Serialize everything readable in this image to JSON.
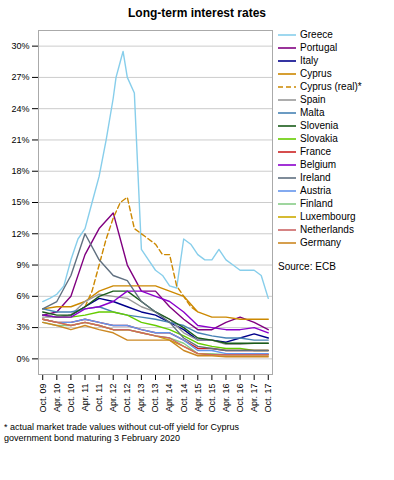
{
  "chart_data": {
    "type": "line",
    "title": "Long-term interest rates",
    "xlim": [
      -0.3,
      16.3
    ],
    "xticks": [
      {
        "value": 0,
        "label": "Oct. 09"
      },
      {
        "value": 1,
        "label": "Apr. 10"
      },
      {
        "value": 2,
        "label": "Oct. 10"
      },
      {
        "value": 3,
        "label": "Apr. 11"
      },
      {
        "value": 4,
        "label": "Oct. 11"
      },
      {
        "value": 5,
        "label": "Apr. 12"
      },
      {
        "value": 6,
        "label": "Oct. 12"
      },
      {
        "value": 7,
        "label": "Apr. 13"
      },
      {
        "value": 8,
        "label": "Oct. 13"
      },
      {
        "value": 9,
        "label": "Apr. 14"
      },
      {
        "value": 10,
        "label": "Oct. 14"
      },
      {
        "value": 11,
        "label": "Apr. 15"
      },
      {
        "value": 12,
        "label": "Oct. 15"
      },
      {
        "value": 13,
        "label": "Apr. 16"
      },
      {
        "value": 14,
        "label": "Oct. 16"
      },
      {
        "value": 15,
        "label": "Apr. 17"
      },
      {
        "value": 16,
        "label": "Oct. 17"
      }
    ],
    "ylim": [
      -1.5,
      31.5
    ],
    "yticks": [
      {
        "value": 0,
        "label": "0%"
      },
      {
        "value": 3,
        "label": "3%"
      },
      {
        "value": 6,
        "label": "6%"
      },
      {
        "value": 9,
        "label": "9%"
      },
      {
        "value": 12,
        "label": "12%"
      },
      {
        "value": 15,
        "label": "15%"
      },
      {
        "value": 18,
        "label": "18%"
      },
      {
        "value": 21,
        "label": "21%"
      },
      {
        "value": 24,
        "label": "24%"
      },
      {
        "value": 27,
        "label": "27%"
      },
      {
        "value": 30,
        "label": "30%"
      }
    ],
    "grid": true,
    "legend": "right",
    "annotations": [
      "Source: ECB",
      "* actual market trade values without cut-off yield for Cyprus\ngovernment bond maturing 3 February 2020"
    ],
    "series": [
      {
        "name": "Greece",
        "color": "#87CEEB",
        "line_style": "solid",
        "x": [
          0,
          0.5,
          1,
          1.5,
          2,
          2.5,
          3,
          3.5,
          4,
          4.5,
          5,
          5.2,
          5.5,
          5.7,
          6,
          6.5,
          7,
          7.5,
          8,
          8.5,
          9,
          9.5,
          10,
          10.5,
          11,
          11.5,
          12,
          12.5,
          13,
          13.5,
          14,
          14.5,
          15,
          15.5,
          16
        ],
        "values": [
          5.5,
          5.8,
          6.2,
          7.0,
          9.5,
          11.5,
          12.5,
          15.0,
          17.5,
          21.0,
          25.0,
          27.0,
          28.5,
          29.5,
          27.0,
          25.5,
          10.5,
          9.5,
          8.5,
          8.0,
          7.0,
          6.8,
          11.5,
          11.0,
          10.0,
          9.5,
          9.5,
          10.5,
          9.5,
          9.0,
          8.5,
          8.5,
          8.5,
          8.0,
          5.8
        ]
      },
      {
        "name": "Portugal",
        "color": "#800080",
        "line_style": "solid",
        "x": [
          0,
          1,
          2,
          3,
          4,
          5,
          6,
          7,
          8,
          9,
          10,
          11,
          12,
          13,
          14,
          15,
          16
        ],
        "values": [
          4.2,
          4.5,
          6.0,
          10.0,
          12.5,
          14.0,
          9.0,
          6.5,
          6.5,
          5.0,
          3.8,
          2.8,
          2.8,
          3.5,
          4.0,
          3.5,
          2.8
        ]
      },
      {
        "name": "Italy",
        "color": "#00008B",
        "line_style": "solid",
        "x": [
          0,
          1,
          2,
          3,
          4,
          5,
          6,
          7,
          8,
          9,
          10,
          11,
          12,
          13,
          14,
          15,
          16
        ],
        "values": [
          4.2,
          4.0,
          4.2,
          5.0,
          5.8,
          5.5,
          5.0,
          4.5,
          4.2,
          3.5,
          2.8,
          1.8,
          1.8,
          1.6,
          2.0,
          2.4,
          2.0
        ]
      },
      {
        "name": "Cyprus",
        "color": "#CC8800",
        "line_style": "solid",
        "x": [
          0,
          1,
          2,
          3,
          4,
          5,
          6,
          7,
          8,
          9,
          10,
          11,
          12,
          13,
          14,
          15,
          16
        ],
        "values": [
          4.8,
          5.0,
          5.0,
          5.5,
          6.5,
          7.0,
          7.0,
          7.0,
          7.0,
          6.5,
          6.0,
          4.5,
          4.0,
          4.0,
          3.8,
          3.8,
          3.8
        ]
      },
      {
        "name": "Cyprus (real)*",
        "color": "#CC8800",
        "line_style": "dashed",
        "x": [
          3,
          3.5,
          4,
          4.5,
          5,
          5.5,
          6,
          6.5,
          7,
          7.5,
          8,
          8.5,
          9,
          9.5,
          10,
          10.5,
          11
        ],
        "values": [
          5.0,
          6.5,
          9.0,
          11.5,
          13.5,
          15.0,
          15.5,
          12.5,
          12.0,
          11.5,
          11.0,
          10.0,
          10.0,
          7.0,
          6.0,
          5.0,
          4.5
        ]
      },
      {
        "name": "Spain",
        "color": "#999999",
        "line_style": "solid",
        "x": [
          0,
          1,
          2,
          3,
          4,
          5,
          6,
          7,
          8,
          9,
          10,
          11,
          12,
          13,
          14,
          15,
          16
        ],
        "values": [
          4.0,
          4.0,
          4.2,
          5.5,
          6.2,
          6.0,
          5.8,
          5.0,
          4.5,
          3.8,
          2.5,
          1.8,
          1.8,
          1.4,
          1.4,
          1.5,
          1.5
        ]
      },
      {
        "name": "Malta",
        "color": "#4682B4",
        "line_style": "solid",
        "x": [
          0,
          1,
          2,
          3,
          4,
          5,
          6,
          7,
          8,
          9,
          10,
          11,
          12,
          13,
          14,
          15,
          16
        ],
        "values": [
          4.8,
          4.5,
          4.5,
          4.8,
          5.0,
          4.5,
          4.2,
          4.0,
          3.8,
          3.5,
          3.2,
          2.5,
          2.2,
          2.0,
          2.0,
          1.8,
          1.8
        ]
      },
      {
        "name": "Slovenia",
        "color": "#1a5c1a",
        "line_style": "solid",
        "x": [
          0,
          1,
          2,
          3,
          4,
          5,
          6,
          7,
          8,
          9,
          10,
          11,
          12,
          13,
          14,
          15,
          16
        ],
        "values": [
          4.5,
          4.2,
          4.2,
          5.0,
          6.0,
          6.5,
          6.5,
          5.5,
          4.5,
          3.8,
          3.0,
          2.0,
          1.8,
          1.5,
          1.5,
          1.5,
          1.5
        ]
      },
      {
        "name": "Slovakia",
        "color": "#66CC00",
        "line_style": "solid",
        "x": [
          0,
          1,
          2,
          3,
          4,
          5,
          6,
          7,
          8,
          9,
          10,
          11,
          12,
          13,
          14,
          15,
          16
        ],
        "values": [
          4.2,
          4.0,
          4.0,
          4.2,
          4.5,
          4.5,
          4.2,
          3.5,
          3.2,
          2.8,
          2.2,
          1.5,
          1.2,
          1.0,
          1.0,
          0.8,
          0.8
        ]
      },
      {
        "name": "France",
        "color": "#CC2222",
        "line_style": "solid",
        "x": [
          0,
          1,
          2,
          3,
          4,
          5,
          6,
          7,
          8,
          9,
          10,
          11,
          12,
          13,
          14,
          15,
          16
        ],
        "values": [
          3.8,
          3.5,
          3.5,
          3.8,
          3.5,
          3.2,
          3.2,
          2.8,
          2.5,
          2.5,
          1.8,
          1.0,
          1.0,
          0.8,
          0.8,
          0.8,
          0.8
        ]
      },
      {
        "name": "Belgium",
        "color": "#8B00CC",
        "line_style": "solid",
        "x": [
          0,
          1,
          2,
          3,
          4,
          5,
          6,
          7,
          8,
          9,
          10,
          11,
          12,
          13,
          14,
          15,
          16
        ],
        "values": [
          4.2,
          4.0,
          4.0,
          4.8,
          5.0,
          5.5,
          6.5,
          6.5,
          6.0,
          5.5,
          4.5,
          3.2,
          3.0,
          2.8,
          2.8,
          3.0,
          2.5
        ]
      },
      {
        "name": "Ireland",
        "color": "#607080",
        "line_style": "solid",
        "x": [
          0,
          1,
          2,
          3,
          4,
          5,
          6,
          7,
          8,
          9,
          10,
          11,
          12,
          13,
          14,
          15,
          16
        ],
        "values": [
          4.8,
          5.5,
          8.0,
          12.0,
          9.5,
          8.0,
          7.5,
          5.5,
          4.5,
          3.5,
          2.0,
          1.2,
          1.0,
          0.8,
          0.8,
          0.8,
          0.8
        ]
      },
      {
        "name": "Austria",
        "color": "#6495ED",
        "line_style": "solid",
        "x": [
          0,
          1,
          2,
          3,
          4,
          5,
          6,
          7,
          8,
          9,
          10,
          11,
          12,
          13,
          14,
          15,
          16
        ],
        "values": [
          3.8,
          3.5,
          3.5,
          3.8,
          3.5,
          3.2,
          3.2,
          2.8,
          2.5,
          2.5,
          1.8,
          0.8,
          0.8,
          0.5,
          0.5,
          0.5,
          0.5
        ]
      },
      {
        "name": "Finland",
        "color": "#88CC88",
        "line_style": "solid",
        "x": [
          0,
          1,
          2,
          3,
          4,
          5,
          6,
          7,
          8,
          9,
          10,
          11,
          12,
          13,
          14,
          15,
          16
        ],
        "values": [
          3.5,
          3.2,
          3.2,
          3.5,
          3.2,
          2.8,
          2.8,
          2.5,
          2.2,
          2.0,
          1.5,
          0.5,
          0.5,
          0.4,
          0.4,
          0.4,
          0.4
        ]
      },
      {
        "name": "Luxembourg",
        "color": "#CCAA00",
        "line_style": "solid",
        "x": [
          0,
          1,
          2,
          3,
          4,
          5,
          6,
          7,
          8,
          9,
          10,
          11,
          12,
          13,
          14,
          15,
          16
        ],
        "values": [
          3.8,
          3.5,
          3.2,
          3.5,
          3.2,
          2.8,
          2.8,
          2.5,
          2.2,
          1.8,
          1.2,
          0.5,
          0.4,
          0.4,
          0.4,
          0.4,
          0.4
        ]
      },
      {
        "name": "Netherlands",
        "color": "#CC6666",
        "line_style": "solid",
        "x": [
          0,
          1,
          2,
          3,
          4,
          5,
          6,
          7,
          8,
          9,
          10,
          11,
          12,
          13,
          14,
          15,
          16
        ],
        "values": [
          3.8,
          3.5,
          3.2,
          3.5,
          3.2,
          2.8,
          2.8,
          2.5,
          2.2,
          2.0,
          1.2,
          0.5,
          0.4,
          0.4,
          0.4,
          0.4,
          0.4
        ]
      },
      {
        "name": "Germany",
        "color": "#CC8822",
        "line_style": "solid",
        "x": [
          0,
          1,
          2,
          3,
          4,
          5,
          6,
          7,
          8,
          9,
          10,
          11,
          12,
          13,
          14,
          15,
          16
        ],
        "values": [
          3.5,
          3.2,
          2.8,
          3.2,
          2.8,
          2.5,
          1.8,
          1.8,
          1.8,
          1.8,
          0.8,
          0.3,
          0.3,
          0.2,
          0.2,
          0.2,
          0.2
        ]
      }
    ]
  }
}
